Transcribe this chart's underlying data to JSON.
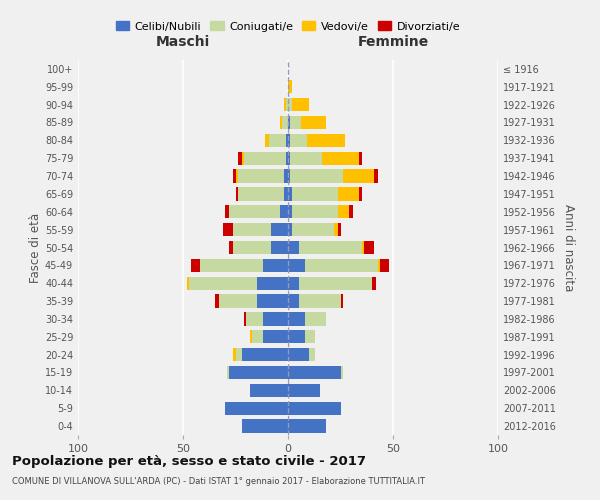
{
  "age_groups": [
    "0-4",
    "5-9",
    "10-14",
    "15-19",
    "20-24",
    "25-29",
    "30-34",
    "35-39",
    "40-44",
    "45-49",
    "50-54",
    "55-59",
    "60-64",
    "65-69",
    "70-74",
    "75-79",
    "80-84",
    "85-89",
    "90-94",
    "95-99",
    "100+"
  ],
  "birth_years": [
    "2012-2016",
    "2007-2011",
    "2002-2006",
    "1997-2001",
    "1992-1996",
    "1987-1991",
    "1982-1986",
    "1977-1981",
    "1972-1976",
    "1967-1971",
    "1962-1966",
    "1957-1961",
    "1952-1956",
    "1947-1951",
    "1942-1946",
    "1937-1941",
    "1932-1936",
    "1927-1931",
    "1922-1926",
    "1917-1921",
    "≤ 1916"
  ],
  "maschi": {
    "celibi": [
      22,
      30,
      18,
      28,
      22,
      12,
      12,
      15,
      15,
      12,
      8,
      8,
      4,
      2,
      2,
      1,
      1,
      0,
      0,
      0,
      0
    ],
    "coniugati": [
      0,
      0,
      0,
      1,
      3,
      5,
      8,
      18,
      32,
      30,
      18,
      18,
      24,
      22,
      22,
      20,
      8,
      3,
      1,
      0,
      0
    ],
    "vedovi": [
      0,
      0,
      0,
      0,
      1,
      1,
      0,
      0,
      1,
      0,
      0,
      0,
      0,
      0,
      1,
      1,
      2,
      1,
      1,
      0,
      0
    ],
    "divorziati": [
      0,
      0,
      0,
      0,
      0,
      0,
      1,
      2,
      0,
      4,
      2,
      5,
      2,
      1,
      1,
      2,
      0,
      0,
      0,
      0,
      0
    ]
  },
  "femmine": {
    "nubili": [
      18,
      25,
      15,
      25,
      10,
      8,
      8,
      5,
      5,
      8,
      5,
      2,
      2,
      2,
      1,
      1,
      1,
      1,
      0,
      0,
      0
    ],
    "coniugate": [
      0,
      0,
      0,
      1,
      3,
      5,
      10,
      20,
      35,
      35,
      30,
      20,
      22,
      22,
      25,
      15,
      8,
      5,
      2,
      0,
      0
    ],
    "vedove": [
      0,
      0,
      0,
      0,
      0,
      0,
      0,
      0,
      0,
      1,
      1,
      2,
      5,
      10,
      15,
      18,
      18,
      12,
      8,
      2,
      0
    ],
    "divorziate": [
      0,
      0,
      0,
      0,
      0,
      0,
      0,
      1,
      2,
      4,
      5,
      1,
      2,
      1,
      2,
      1,
      0,
      0,
      0,
      0,
      0
    ]
  },
  "colors": {
    "celibi": "#4472c4",
    "coniugati": "#c5d9a0",
    "vedovi": "#ffc000",
    "divorziati": "#cc0000"
  },
  "title": "Popolazione per età, sesso e stato civile - 2017",
  "subtitle": "COMUNE DI VILLANOVA SULL'ARDA (PC) - Dati ISTAT 1° gennaio 2017 - Elaborazione TUTTITALIA.IT",
  "xlabel_left": "Maschi",
  "xlabel_right": "Femmine",
  "ylabel_left": "Fasce di età",
  "ylabel_right": "Anni di nascita",
  "xlim": 100,
  "background_color": "#f0f0f0",
  "legend_labels": [
    "Celibi/Nubili",
    "Coniugati/e",
    "Vedovi/e",
    "Divorziati/e"
  ]
}
